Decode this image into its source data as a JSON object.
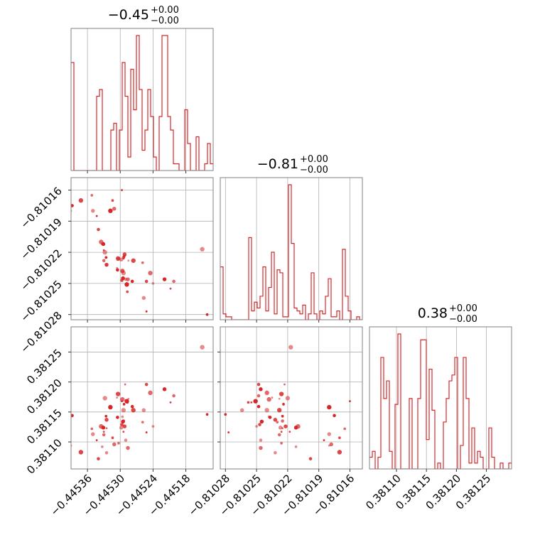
{
  "chart_data": {
    "type": "corner",
    "color": "#d62728",
    "grid": true,
    "parameters": [
      {
        "name": "p0",
        "title": "−0.45",
        "err_plus": "+0.00",
        "err_minus": "−0.00",
        "range": [
          -0.44539,
          -0.44513
        ]
      },
      {
        "name": "p1",
        "title": "−0.81",
        "err_plus": "+0.00",
        "err_minus": "−0.00",
        "range": [
          -0.810285,
          -0.810148
        ]
      },
      {
        "name": "p2",
        "title": "0.38",
        "err_plus": "+0.00",
        "err_minus": "−0.00",
        "range": [
          0.381055,
          0.381292
        ]
      }
    ],
    "ticks": [
      {
        "values": [
          -0.44536,
          -0.4453,
          -0.44524,
          -0.44518
        ],
        "labels": [
          "−0.44536",
          "−0.44530",
          "−0.44524",
          "−0.44518"
        ]
      },
      {
        "values": [
          -0.81028,
          -0.81025,
          -0.81022,
          -0.81019,
          -0.81016
        ],
        "labels": [
          "−0.81028",
          "−0.81025",
          "−0.81022",
          "−0.81019",
          "−0.81016"
        ]
      },
      {
        "values": [
          0.3811,
          0.38115,
          0.3812,
          0.38125
        ],
        "labels": [
          "0.38110",
          "0.38115",
          "0.38120",
          "0.38125"
        ]
      }
    ],
    "histograms": [
      {
        "param": "p0",
        "bins": 50,
        "counts": [
          16,
          0,
          0,
          0,
          0,
          0,
          0,
          0,
          0,
          11,
          12,
          0,
          0,
          0,
          6,
          7,
          0,
          6,
          16,
          11,
          2,
          15,
          9,
          20,
          12,
          3,
          6,
          12,
          8,
          2,
          0,
          8,
          20,
          20,
          8,
          6,
          1,
          1,
          0,
          0,
          9,
          4,
          0,
          0,
          5,
          0,
          0,
          1,
          4,
          1
        ]
      },
      {
        "param": "p1",
        "bins": 50,
        "counts": [
          18,
          2,
          1,
          1,
          0,
          0,
          0,
          0,
          0,
          0,
          28,
          3,
          6,
          4,
          8,
          18,
          3,
          11,
          23,
          2,
          17,
          16,
          1,
          1,
          46,
          26,
          4,
          3,
          2,
          5,
          0,
          2,
          16,
          2,
          0,
          3,
          2,
          8,
          14,
          1,
          1,
          3,
          0,
          24,
          8,
          3,
          0,
          0,
          1,
          0
        ]
      },
      {
        "param": "p2",
        "bins": 50,
        "counts": [
          2,
          3,
          0,
          2,
          19,
          12,
          15,
          3,
          0,
          11,
          23,
          0,
          0,
          0,
          12,
          0,
          0,
          12,
          22,
          22,
          5,
          17,
          10,
          0,
          1,
          0,
          8,
          12,
          15,
          16,
          19,
          0,
          4,
          19,
          12,
          1,
          7,
          1,
          3,
          2,
          0,
          0,
          7,
          2,
          0,
          0,
          1,
          0,
          0,
          1
        ]
      }
    ],
    "samples": {
      "p0": [
        -0.44539,
        -0.445388,
        -0.445372,
        -0.445352,
        -0.44535,
        -0.445343,
        -0.44534,
        -0.445335,
        -0.445333,
        -0.445331,
        -0.44533,
        -0.44533,
        -0.445328,
        -0.445326,
        -0.445325,
        -0.445325,
        -0.445325,
        -0.445318,
        -0.445314,
        -0.445311,
        -0.445306,
        -0.445305,
        -0.445304,
        -0.445303,
        -0.445298,
        -0.445297,
        -0.445297,
        -0.445296,
        -0.445296,
        -0.445295,
        -0.445294,
        -0.445294,
        -0.445294,
        -0.445293,
        -0.445292,
        -0.445291,
        -0.44529,
        -0.445288,
        -0.445287,
        -0.445286,
        -0.445285,
        -0.445278,
        -0.445276,
        -0.445259,
        -0.445257,
        -0.445252,
        -0.445252,
        -0.445245,
        -0.44524,
        -0.445219,
        -0.445208,
        -0.445202,
        -0.44515,
        -0.445141
      ],
      "p1": [
        -0.81018,
        -0.810175,
        -0.81017,
        -0.810165,
        -0.81018,
        -0.810185,
        -0.810198,
        -0.81021,
        -0.810212,
        -0.810212,
        -0.810218,
        -0.810228,
        -0.81022,
        -0.810225,
        -0.810232,
        -0.810225,
        -0.810232,
        -0.81018,
        -0.81017,
        -0.810178,
        -0.810235,
        -0.810237,
        -0.810226,
        -0.810226,
        -0.810227,
        -0.81016,
        -0.810247,
        -0.810238,
        -0.810238,
        -0.810245,
        -0.810226,
        -0.810225,
        -0.81024,
        -0.810224,
        -0.810222,
        -0.810223,
        -0.810246,
        -0.810251,
        -0.810258,
        -0.810246,
        -0.810228,
        -0.810248,
        -0.810228,
        -0.81023,
        -0.810264,
        -0.810277,
        -0.810248,
        -0.81024,
        -0.81025,
        -0.810246,
        -0.810255,
        -0.810248,
        -0.810217,
        -0.81028
      ],
      "p2": [
        0.381094,
        0.381144,
        0.381083,
        0.381122,
        0.381113,
        0.381103,
        0.381072,
        0.381126,
        0.381092,
        0.381124,
        0.381117,
        0.381112,
        0.381173,
        0.381143,
        0.381137,
        0.381123,
        0.381082,
        0.381158,
        0.381107,
        0.381096,
        0.381174,
        0.381141,
        0.38118,
        0.381098,
        0.381124,
        0.381168,
        0.381129,
        0.381171,
        0.381142,
        0.381134,
        0.381117,
        0.381135,
        0.381153,
        0.381163,
        0.381126,
        0.381196,
        0.381103,
        0.381168,
        0.381166,
        0.38109,
        0.381172,
        0.381159,
        0.381153,
        0.381133,
        0.381153,
        0.381116,
        0.381196,
        0.381182,
        0.381126,
        0.381188,
        0.381166,
        0.381177,
        0.381258,
        0.381146
      ]
    },
    "panels": [
      {
        "type": "hist",
        "param": "p0",
        "row": 0,
        "col": 0
      },
      {
        "type": "scatter",
        "x": "p0",
        "y": "p1",
        "row": 1,
        "col": 0
      },
      {
        "type": "hist",
        "param": "p1",
        "row": 1,
        "col": 1
      },
      {
        "type": "scatter",
        "x": "p0",
        "y": "p2",
        "row": 2,
        "col": 0
      },
      {
        "type": "scatter",
        "x": "p1",
        "y": "p2",
        "row": 2,
        "col": 1
      },
      {
        "type": "hist",
        "param": "p2",
        "row": 2,
        "col": 2
      }
    ]
  }
}
